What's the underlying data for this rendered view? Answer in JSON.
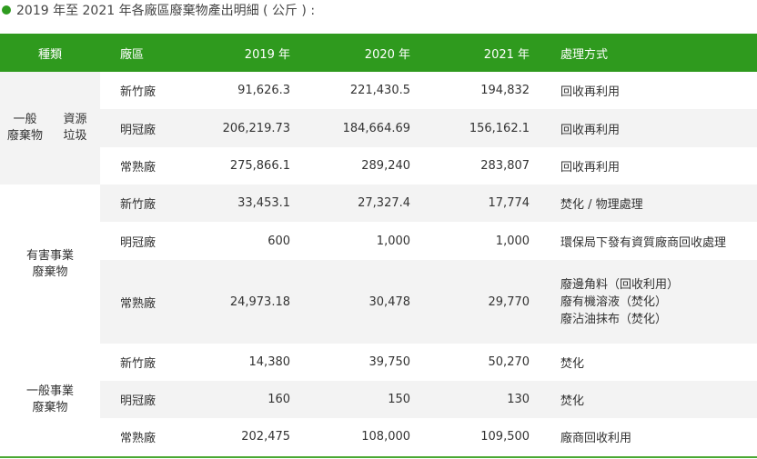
{
  "caption": "2019 年至 2021 年各廠區廢棄物產出明細 ( 公斤 ) :",
  "columns": [
    "種類",
    "廠區",
    "2019 年",
    "2020 年",
    "2021 年",
    "處理方式"
  ],
  "groups": {
    "g1a": "一般\n廢棄物",
    "g1b": "資源\n垃圾",
    "g2": "有害事業\n廢棄物",
    "g3": "一般事業\n廢棄物"
  },
  "rows": [
    {
      "plant": "新竹廠",
      "y2019": "91,626.3",
      "y2020": "221,430.5",
      "y2021": "194,832",
      "method": "回收再利用"
    },
    {
      "plant": "明冠廠",
      "y2019": "206,219.73",
      "y2020": "184,664.69",
      "y2021": "156,162.1",
      "method": "回收再利用"
    },
    {
      "plant": "常熟廠",
      "y2019": "275,866.1",
      "y2020": "289,240",
      "y2021": "283,807",
      "method": "回收再利用"
    },
    {
      "plant": "新竹廠",
      "y2019": "33,453.1",
      "y2020": "27,327.4",
      "y2021": "17,774",
      "method": "焚化 / 物理處理"
    },
    {
      "plant": "明冠廠",
      "y2019": "600",
      "y2020": "1,000",
      "y2021": "1,000",
      "method": "環保局下發有資質廠商回收處理"
    },
    {
      "plant": "常熟廠",
      "y2019": "24,973.18",
      "y2020": "30,478",
      "y2021": "29,770",
      "method": "廢邊角料（回收利用）\n廢有機溶液（焚化）\n廢沾油抹布（焚化）"
    },
    {
      "plant": "新竹廠",
      "y2019": "14,380",
      "y2020": "39,750",
      "y2021": "50,270",
      "method": "焚化"
    },
    {
      "plant": "明冠廠",
      "y2019": "160",
      "y2020": "150",
      "y2021": "130",
      "method": "焚化"
    },
    {
      "plant": "常熟廠",
      "y2019": "202,475",
      "y2020": "108,000",
      "y2021": "109,500",
      "method": "廠商回收利用"
    }
  ]
}
